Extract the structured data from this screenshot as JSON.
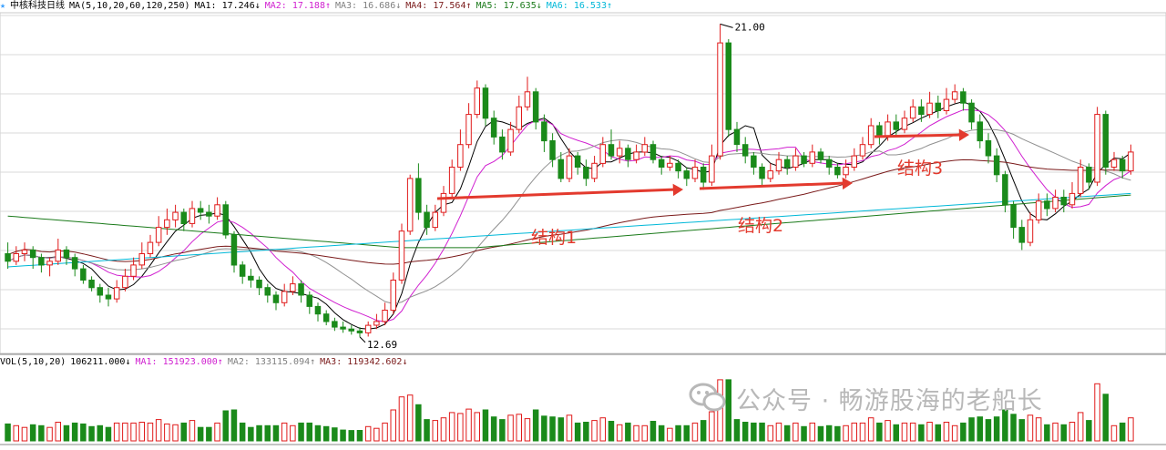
{
  "header": {
    "title": "中核科技日线",
    "ma_def": "MA(5,10,20,60,120,250)",
    "ma_items": [
      {
        "label": "MA1: 17.246↓",
        "color": "#000000"
      },
      {
        "label": "MA2: 17.188↑",
        "color": "#d01fd0"
      },
      {
        "label": "MA3: 16.686↓",
        "color": "#808080"
      },
      {
        "label": "MA4: 17.564↑",
        "color": "#7a1a1a"
      },
      {
        "label": "MA5: 17.635↓",
        "color": "#1a7a1a"
      },
      {
        "label": "MA6: 16.533↑",
        "color": "#00b8d8"
      }
    ]
  },
  "volume_header": {
    "def": "VOL(5,10,20)",
    "items": [
      {
        "label": "106211.000↓",
        "color": "#000000"
      },
      {
        "label": "MA1: 151923.000↑",
        "color": "#d01fd0"
      },
      {
        "label": "MA2: 133115.094↑",
        "color": "#808080"
      },
      {
        "label": "MA3: 119342.602↓",
        "color": "#7a1a1a"
      }
    ]
  },
  "annotations": {
    "structure1": "结构1",
    "structure2": "结构2",
    "structure3": "结构3",
    "high_label": "21.00",
    "low_label": "12.69"
  },
  "watermark": "公众号 · 畅游股海的老船长",
  "colors": {
    "up": "#e01a1a",
    "down": "#1a8a1a",
    "arrow": "#e33a2e",
    "grid": "#d8d8d8"
  },
  "chart_data": {
    "type": "candlestick",
    "title": "中核科技日线",
    "price_range": [
      12.3,
      21.3
    ],
    "max_price": 21.0,
    "min_price": 12.69,
    "candles": [
      [
        14.9,
        14.7,
        15.2,
        14.5
      ],
      [
        14.7,
        14.9,
        15.1,
        14.6
      ],
      [
        14.9,
        15.0,
        15.2,
        14.7
      ],
      [
        15.0,
        14.8,
        15.1,
        14.5
      ],
      [
        14.8,
        14.6,
        14.9,
        14.4
      ],
      [
        14.6,
        14.7,
        14.8,
        14.3
      ],
      [
        14.7,
        15.0,
        15.3,
        14.6
      ],
      [
        15.0,
        14.8,
        15.1,
        14.6
      ],
      [
        14.8,
        14.5,
        14.9,
        14.3
      ],
      [
        14.5,
        14.2,
        14.6,
        14.1
      ],
      [
        14.2,
        14.0,
        14.3,
        13.9
      ],
      [
        14.0,
        13.8,
        14.1,
        13.6
      ],
      [
        13.8,
        13.7,
        14.0,
        13.5
      ],
      [
        13.7,
        14.0,
        14.2,
        13.6
      ],
      [
        14.0,
        14.3,
        14.5,
        13.9
      ],
      [
        14.3,
        14.6,
        14.8,
        14.2
      ],
      [
        14.6,
        14.9,
        15.2,
        14.5
      ],
      [
        14.9,
        15.2,
        15.4,
        14.8
      ],
      [
        15.2,
        15.6,
        15.9,
        15.1
      ],
      [
        15.6,
        15.8,
        16.1,
        15.4
      ],
      [
        15.8,
        16.0,
        16.2,
        15.6
      ],
      [
        16.0,
        15.7,
        16.1,
        15.5
      ],
      [
        15.7,
        16.1,
        16.3,
        15.6
      ],
      [
        16.1,
        16.0,
        16.3,
        15.8
      ],
      [
        16.0,
        15.9,
        16.2,
        15.7
      ],
      [
        15.9,
        16.2,
        16.4,
        15.8
      ],
      [
        16.2,
        15.4,
        16.3,
        15.3
      ],
      [
        15.4,
        14.6,
        15.5,
        14.4
      ],
      [
        14.6,
        14.3,
        14.7,
        14.1
      ],
      [
        14.3,
        14.2,
        14.5,
        14.0
      ],
      [
        14.2,
        14.0,
        14.3,
        13.8
      ],
      [
        14.0,
        13.8,
        14.1,
        13.6
      ],
      [
        13.8,
        13.6,
        13.9,
        13.4
      ],
      [
        13.6,
        13.9,
        14.1,
        13.5
      ],
      [
        13.9,
        14.1,
        14.3,
        13.8
      ],
      [
        14.1,
        13.8,
        14.2,
        13.6
      ],
      [
        13.8,
        13.5,
        13.9,
        13.3
      ],
      [
        13.5,
        13.3,
        13.6,
        13.1
      ],
      [
        13.3,
        13.1,
        13.4,
        13.0
      ],
      [
        13.1,
        12.95,
        13.2,
        12.85
      ],
      [
        12.95,
        12.9,
        13.1,
        12.8
      ],
      [
        12.9,
        12.85,
        13.0,
        12.75
      ],
      [
        12.85,
        12.8,
        12.95,
        12.69
      ],
      [
        12.8,
        13.0,
        13.1,
        12.7
      ],
      [
        13.0,
        13.1,
        13.3,
        12.9
      ],
      [
        13.1,
        13.4,
        13.6,
        13.0
      ],
      [
        13.4,
        14.2,
        14.4,
        13.3
      ],
      [
        14.2,
        15.5,
        15.7,
        14.1
      ],
      [
        15.5,
        16.9,
        17.0,
        15.4
      ],
      [
        16.9,
        16.0,
        17.3,
        15.8
      ],
      [
        16.0,
        15.6,
        16.2,
        15.4
      ],
      [
        15.6,
        16.0,
        16.2,
        15.5
      ],
      [
        16.0,
        16.5,
        16.7,
        15.9
      ],
      [
        16.5,
        17.2,
        17.4,
        16.4
      ],
      [
        17.2,
        17.8,
        18.2,
        17.1
      ],
      [
        17.8,
        18.6,
        18.9,
        17.7
      ],
      [
        18.6,
        19.3,
        19.5,
        18.5
      ],
      [
        19.3,
        18.5,
        19.4,
        18.3
      ],
      [
        18.5,
        18.0,
        18.7,
        17.8
      ],
      [
        18.0,
        17.6,
        18.2,
        17.4
      ],
      [
        17.6,
        18.2,
        18.4,
        17.5
      ],
      [
        18.2,
        18.8,
        19.1,
        18.1
      ],
      [
        18.8,
        19.2,
        19.6,
        18.7
      ],
      [
        19.2,
        18.4,
        19.3,
        18.2
      ],
      [
        18.4,
        17.9,
        18.6,
        17.6
      ],
      [
        17.9,
        17.4,
        18.1,
        17.2
      ],
      [
        17.4,
        16.9,
        17.6,
        16.8
      ],
      [
        16.9,
        17.5,
        17.7,
        16.8
      ],
      [
        17.5,
        17.2,
        17.6,
        17.0
      ],
      [
        17.2,
        16.9,
        17.4,
        16.7
      ],
      [
        16.9,
        17.3,
        17.5,
        16.8
      ],
      [
        17.3,
        17.8,
        18.0,
        17.2
      ],
      [
        17.8,
        17.5,
        18.2,
        17.4
      ],
      [
        17.5,
        17.7,
        17.9,
        17.3
      ],
      [
        17.7,
        17.4,
        17.8,
        17.2
      ],
      [
        17.4,
        17.6,
        17.8,
        17.3
      ],
      [
        17.6,
        17.8,
        18.0,
        17.5
      ],
      [
        17.8,
        17.4,
        17.9,
        17.3
      ],
      [
        17.4,
        17.2,
        17.5,
        17.0
      ],
      [
        17.2,
        17.3,
        17.5,
        17.1
      ],
      [
        17.3,
        17.1,
        17.4,
        16.9
      ],
      [
        17.1,
        16.9,
        17.2,
        16.7
      ],
      [
        16.9,
        17.2,
        17.4,
        16.8
      ],
      [
        17.2,
        16.8,
        17.3,
        16.6
      ],
      [
        16.8,
        17.5,
        17.8,
        16.7
      ],
      [
        17.5,
        20.5,
        21.0,
        17.4
      ],
      [
        20.5,
        18.2,
        20.6,
        18.0
      ],
      [
        18.2,
        17.8,
        18.4,
        17.6
      ],
      [
        17.8,
        17.5,
        18.0,
        17.3
      ],
      [
        17.5,
        17.2,
        17.6,
        17.0
      ],
      [
        17.2,
        16.9,
        17.3,
        16.7
      ],
      [
        16.9,
        17.1,
        17.3,
        16.8
      ],
      [
        17.1,
        17.4,
        17.6,
        17.0
      ],
      [
        17.4,
        17.2,
        17.5,
        17.0
      ],
      [
        17.2,
        17.5,
        17.7,
        17.1
      ],
      [
        17.5,
        17.3,
        17.6,
        17.2
      ],
      [
        17.3,
        17.6,
        17.8,
        17.2
      ],
      [
        17.6,
        17.4,
        17.7,
        17.3
      ],
      [
        17.4,
        17.2,
        17.5,
        17.0
      ],
      [
        17.2,
        17.0,
        17.3,
        16.9
      ],
      [
        17.0,
        17.2,
        17.4,
        16.9
      ],
      [
        17.2,
        17.5,
        17.7,
        17.1
      ],
      [
        17.5,
        17.8,
        18.0,
        17.4
      ],
      [
        17.8,
        18.3,
        18.5,
        17.7
      ],
      [
        18.3,
        18.0,
        18.4,
        17.8
      ],
      [
        18.0,
        18.4,
        18.6,
        17.9
      ],
      [
        18.4,
        18.2,
        18.6,
        18.0
      ],
      [
        18.2,
        18.5,
        18.7,
        18.1
      ],
      [
        18.5,
        18.8,
        19.0,
        18.4
      ],
      [
        18.8,
        18.6,
        19.0,
        18.4
      ],
      [
        18.6,
        18.9,
        19.2,
        18.5
      ],
      [
        18.9,
        18.7,
        19.1,
        18.5
      ],
      [
        18.7,
        19.0,
        19.3,
        18.6
      ],
      [
        19.0,
        19.2,
        19.4,
        18.9
      ],
      [
        19.2,
        18.9,
        19.3,
        18.7
      ],
      [
        18.9,
        18.4,
        19.0,
        18.2
      ],
      [
        18.4,
        17.9,
        18.6,
        17.7
      ],
      [
        17.9,
        17.5,
        18.1,
        17.3
      ],
      [
        17.5,
        17.0,
        17.7,
        16.8
      ],
      [
        17.0,
        16.2,
        17.1,
        16.0
      ],
      [
        16.2,
        15.6,
        16.3,
        15.3
      ],
      [
        15.6,
        15.2,
        15.8,
        15.0
      ],
      [
        15.2,
        15.8,
        16.0,
        15.1
      ],
      [
        15.8,
        16.3,
        16.5,
        15.7
      ],
      [
        16.3,
        16.1,
        16.5,
        15.9
      ],
      [
        16.1,
        16.4,
        16.6,
        16.0
      ],
      [
        16.4,
        16.2,
        16.6,
        16.0
      ],
      [
        16.2,
        16.5,
        16.8,
        16.1
      ],
      [
        16.5,
        17.2,
        17.4,
        16.4
      ],
      [
        17.2,
        16.8,
        17.3,
        16.6
      ],
      [
        16.8,
        18.6,
        18.8,
        16.7
      ],
      [
        18.6,
        17.2,
        18.7,
        17.0
      ],
      [
        17.2,
        17.4,
        17.6,
        17.1
      ],
      [
        17.4,
        17.1,
        17.5,
        16.9
      ],
      [
        17.1,
        17.6,
        17.8,
        17.0
      ]
    ],
    "ma_series": [
      {
        "name": "MA1",
        "color": "#000000"
      },
      {
        "name": "MA2",
        "color": "#d01fd0"
      },
      {
        "name": "MA3",
        "color": "#909090"
      },
      {
        "name": "MA4",
        "color": "#7a1a1a"
      },
      {
        "name": "MA5",
        "color": "#1a7a1a"
      },
      {
        "name": "MA6",
        "color": "#00b8d8"
      }
    ]
  }
}
